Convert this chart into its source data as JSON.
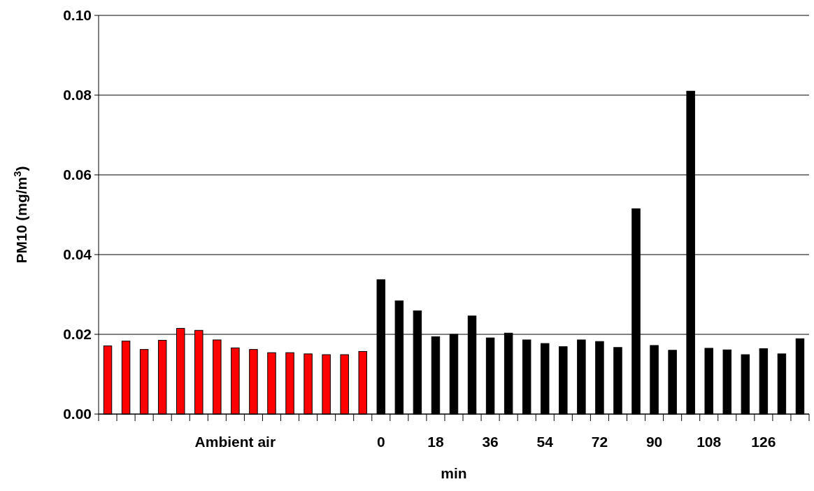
{
  "chart_data": {
    "type": "bar",
    "xlabel": "min",
    "ylabel": "PM10 (mg/m$^{3}$)",
    "categories": [
      null,
      null,
      null,
      null,
      null,
      null,
      null,
      "Ambient air",
      null,
      null,
      null,
      null,
      null,
      null,
      null,
      "0",
      null,
      null,
      "18",
      null,
      null,
      "36",
      null,
      null,
      "54",
      null,
      null,
      "72",
      null,
      null,
      "90",
      null,
      null,
      "108",
      null,
      null,
      "126",
      null,
      null
    ],
    "values": [
      0.0171,
      0.0183,
      0.0162,
      0.0185,
      0.0215,
      0.021,
      0.0186,
      0.0166,
      0.0162,
      0.0154,
      0.0154,
      0.0151,
      0.0149,
      0.0149,
      0.0157,
      0.0337,
      0.0284,
      0.0259,
      0.0194,
      0.02,
      0.0246,
      0.0191,
      0.0203,
      0.0186,
      0.0177,
      0.0169,
      0.0186,
      0.0182,
      0.0167,
      0.0515,
      0.0172,
      0.016,
      0.081,
      0.0165,
      0.0161,
      0.0149,
      0.0164,
      0.0151,
      0.0189
    ],
    "colors": [
      "#ff0000",
      "#ff0000",
      "#ff0000",
      "#ff0000",
      "#ff0000",
      "#ff0000",
      "#ff0000",
      "#ff0000",
      "#ff0000",
      "#ff0000",
      "#ff0000",
      "#ff0000",
      "#ff0000",
      "#ff0000",
      "#ff0000",
      "#000000",
      "#000000",
      "#000000",
      "#000000",
      "#000000",
      "#000000",
      "#000000",
      "#000000",
      "#000000",
      "#000000",
      "#000000",
      "#000000",
      "#000000",
      "#000000",
      "#000000",
      "#000000",
      "#000000",
      "#000000",
      "#000000",
      "#000000",
      "#000000",
      "#000000",
      "#000000",
      "#000000"
    ],
    "ylim": [
      0,
      0.1
    ],
    "yticks": [
      {
        "value": 0,
        "label": "0.00"
      },
      {
        "value": 0.02,
        "label": "0.02"
      },
      {
        "value": 0.04,
        "label": "0.04"
      },
      {
        "value": 0.06,
        "label": "0.06"
      },
      {
        "value": 0.08,
        "label": "0.08"
      },
      {
        "value": 0.1,
        "label": "0.10"
      }
    ],
    "grid": "y"
  }
}
